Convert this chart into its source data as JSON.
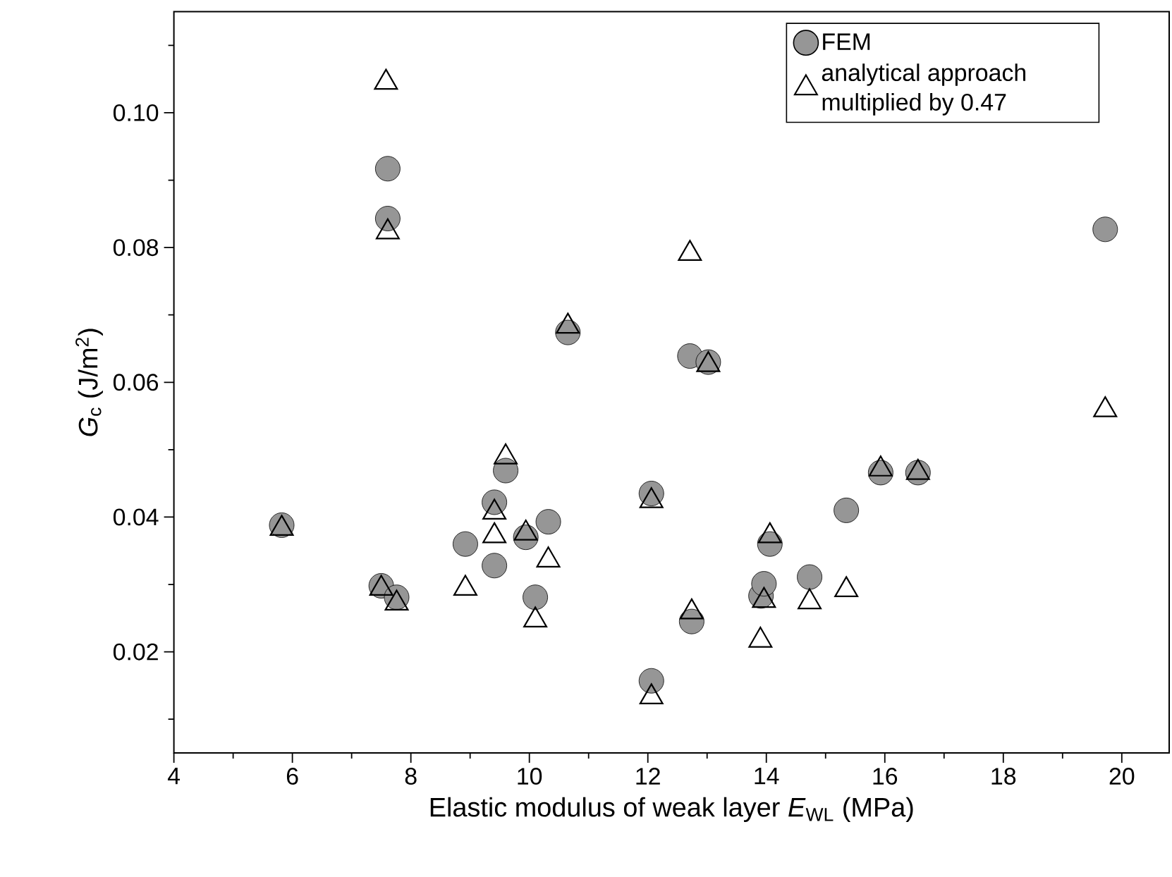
{
  "chart_data": {
    "type": "scatter",
    "xlabel": "Elastic modulus of weak layer *E*$_{WL}$ (MPa)",
    "ylabel": "*G*$_{c}$ (J/m$^{2}$)",
    "xlim": [
      4,
      20.8
    ],
    "ylim": [
      0.005,
      0.115
    ],
    "xticks": [
      4,
      {
        "value": 5,
        "label": null
      },
      6,
      {
        "value": 7,
        "label": null
      },
      8,
      {
        "value": 9,
        "label": null
      },
      10,
      {
        "value": 11,
        "label": null
      },
      12,
      {
        "value": 13,
        "label": null
      },
      14,
      {
        "value": 15,
        "label": null
      },
      16,
      {
        "value": 17,
        "label": null
      },
      18,
      {
        "value": 19,
        "label": null
      },
      20
    ],
    "yticks": [
      {
        "value": 0.01,
        "label": null
      },
      {
        "value": 0.02,
        "label": "0.02"
      },
      {
        "value": 0.03,
        "label": null
      },
      {
        "value": 0.04,
        "label": "0.04"
      },
      {
        "value": 0.05,
        "label": null
      },
      {
        "value": 0.06,
        "label": "0.06"
      },
      {
        "value": 0.07,
        "label": null
      },
      {
        "value": 0.08,
        "label": "0.08"
      },
      {
        "value": 0.09,
        "label": null
      },
      {
        "value": 0.1,
        "label": "0.10"
      },
      {
        "value": 0.11,
        "label": null
      }
    ],
    "legend": "top right",
    "grid": false,
    "series": [
      {
        "name": "FEM",
        "color": "#969696",
        "marker": "circle",
        "x": [
          5.82,
          7.5,
          7.61,
          7.61,
          7.76,
          8.92,
          9.41,
          9.41,
          9.6,
          9.94,
          10.1,
          10.32,
          10.65,
          12.06,
          12.06,
          12.71,
          12.74,
          13.02,
          13.91,
          13.96,
          14.06,
          14.73,
          15.35,
          15.93,
          16.56,
          19.72
        ],
        "values": [
          0.0388,
          0.0298,
          0.0917,
          0.0843,
          0.0281,
          0.036,
          0.0422,
          0.0328,
          0.0469,
          0.037,
          0.0281,
          0.0393,
          0.0674,
          0.0435,
          0.0157,
          0.0639,
          0.0245,
          0.063,
          0.0283,
          0.0301,
          0.036,
          0.0311,
          0.041,
          0.0466,
          0.0466,
          0.0827
        ]
      },
      {
        "name": "analytical approach multiplied by 0.47",
        "color": "#000000",
        "marker": "triangle",
        "x": [
          5.82,
          7.5,
          7.58,
          7.61,
          7.76,
          8.92,
          9.41,
          9.41,
          9.6,
          9.94,
          10.1,
          10.32,
          10.65,
          12.06,
          12.06,
          12.71,
          12.74,
          13.02,
          13.9,
          13.96,
          14.06,
          14.73,
          15.35,
          15.93,
          16.56,
          19.72
        ],
        "values": [
          0.0383,
          0.0294,
          0.1045,
          0.0823,
          0.0272,
          0.0294,
          0.0407,
          0.0372,
          0.0489,
          0.0376,
          0.0247,
          0.0336,
          0.0683,
          0.0424,
          0.0133,
          0.0791,
          0.0259,
          0.0626,
          0.0217,
          0.0276,
          0.0372,
          0.0274,
          0.0292,
          0.0471,
          0.0466,
          0.0559
        ]
      }
    ]
  }
}
